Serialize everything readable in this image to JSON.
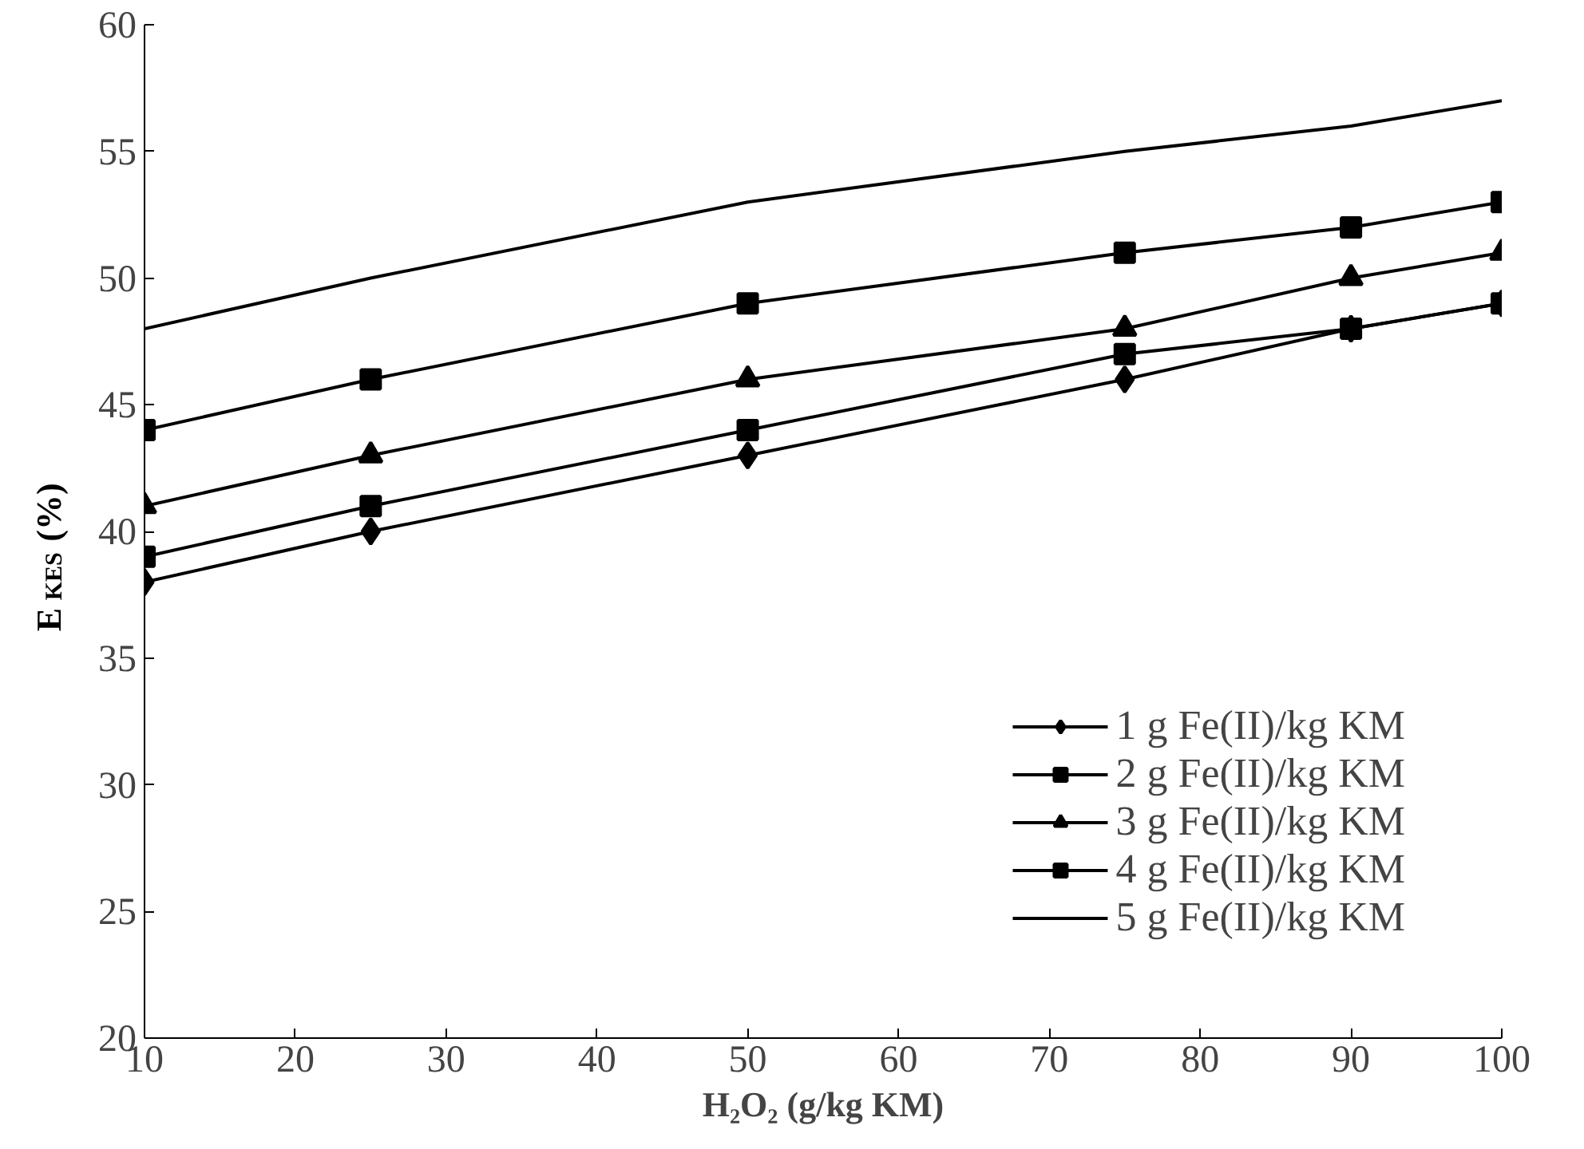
{
  "chart_data": {
    "type": "line",
    "xlabel": "H₂O₂ (g/kg KM)",
    "ylabel": "E$_{KES}$ (%)",
    "x": [
      10,
      25,
      50,
      75,
      90,
      100
    ],
    "series": [
      {
        "name": "1 g Fe(II)/kg KM",
        "color": "#000000",
        "marker": "diamond",
        "values": [
          38,
          40,
          43,
          46,
          48,
          49
        ]
      },
      {
        "name": "2 g Fe(II)/kg KM",
        "color": "#000000",
        "marker": "square",
        "values": [
          39,
          41,
          44,
          47,
          48,
          49
        ]
      },
      {
        "name": "3 g Fe(II)/kg KM",
        "color": "#000000",
        "marker": "triangle",
        "values": [
          41,
          43,
          46,
          48,
          50,
          51
        ]
      },
      {
        "name": "4 g Fe(II)/kg KM",
        "color": "#000000",
        "marker": "square",
        "values": [
          44,
          46,
          49,
          51,
          52,
          53
        ]
      },
      {
        "name": "5 g Fe(II)/kg KM",
        "color": "#000000",
        "marker": "none",
        "values": [
          48,
          50,
          53,
          55,
          56,
          57
        ]
      }
    ],
    "xlim": [
      10,
      100
    ],
    "xticks": [
      10,
      20,
      30,
      40,
      50,
      60,
      70,
      80,
      90,
      100
    ],
    "ylim": [
      20,
      60
    ],
    "yticks": [
      20,
      25,
      30,
      35,
      40,
      45,
      50,
      55,
      60
    ],
    "grid": false,
    "legend": "bottom right",
    "line_style": "solid"
  }
}
